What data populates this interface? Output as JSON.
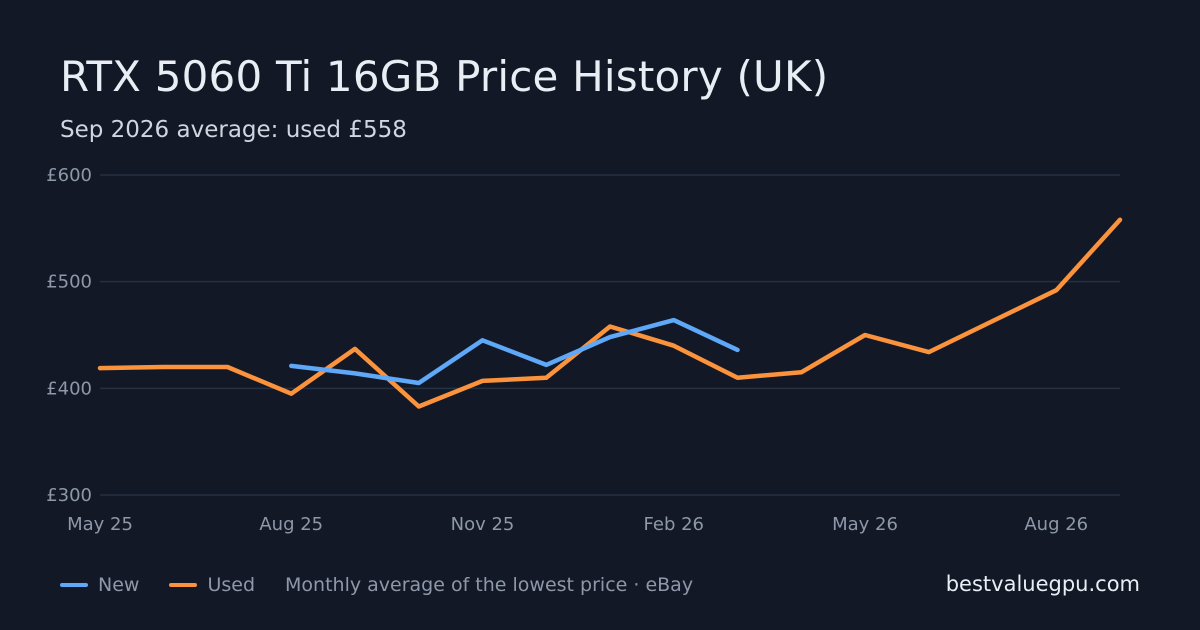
{
  "header": {
    "title": "RTX 5060 Ti 16GB Price History (UK)",
    "subtitle": "Sep 2026 average: used £558"
  },
  "legend": {
    "note": "Monthly average of the lowest price · eBay"
  },
  "brand": "bestvaluegpu.com",
  "colors": {
    "background": "#121826",
    "grid": "#253041",
    "new": "#5ea8f7",
    "used": "#fb923c"
  },
  "chart_data": {
    "type": "line",
    "title": "RTX 5060 Ti 16GB Price History (UK)",
    "xlabel": "",
    "ylabel": "",
    "x": [
      "May 25",
      "Jun 25",
      "Jul 25",
      "Aug 25",
      "Sep 25",
      "Oct 25",
      "Nov 25",
      "Dec 25",
      "Jan 26",
      "Feb 26",
      "Mar 26",
      "Apr 26",
      "May 26",
      "Jun 26",
      "Jul 26",
      "Aug 26",
      "Sep 26"
    ],
    "x_tick_labels": [
      "May 25",
      "Aug 25",
      "Nov 25",
      "Feb 26",
      "May 26",
      "Aug 26"
    ],
    "y_tick_labels": [
      "£300",
      "£400",
      "£500",
      "£600"
    ],
    "y_ticks": [
      300,
      400,
      500,
      600
    ],
    "ylim": [
      300,
      600
    ],
    "grid": true,
    "legend_position": "bottom-left",
    "series": [
      {
        "name": "New",
        "color": "#5ea8f7",
        "values": [
          null,
          null,
          null,
          421,
          414,
          405,
          445,
          422,
          448,
          464,
          436,
          null,
          null,
          null,
          null,
          null,
          null
        ]
      },
      {
        "name": "Used",
        "color": "#fb923c",
        "values": [
          419,
          420,
          420,
          395,
          437,
          383,
          407,
          410,
          458,
          440,
          410,
          415,
          450,
          434,
          463,
          492,
          558
        ]
      }
    ]
  }
}
